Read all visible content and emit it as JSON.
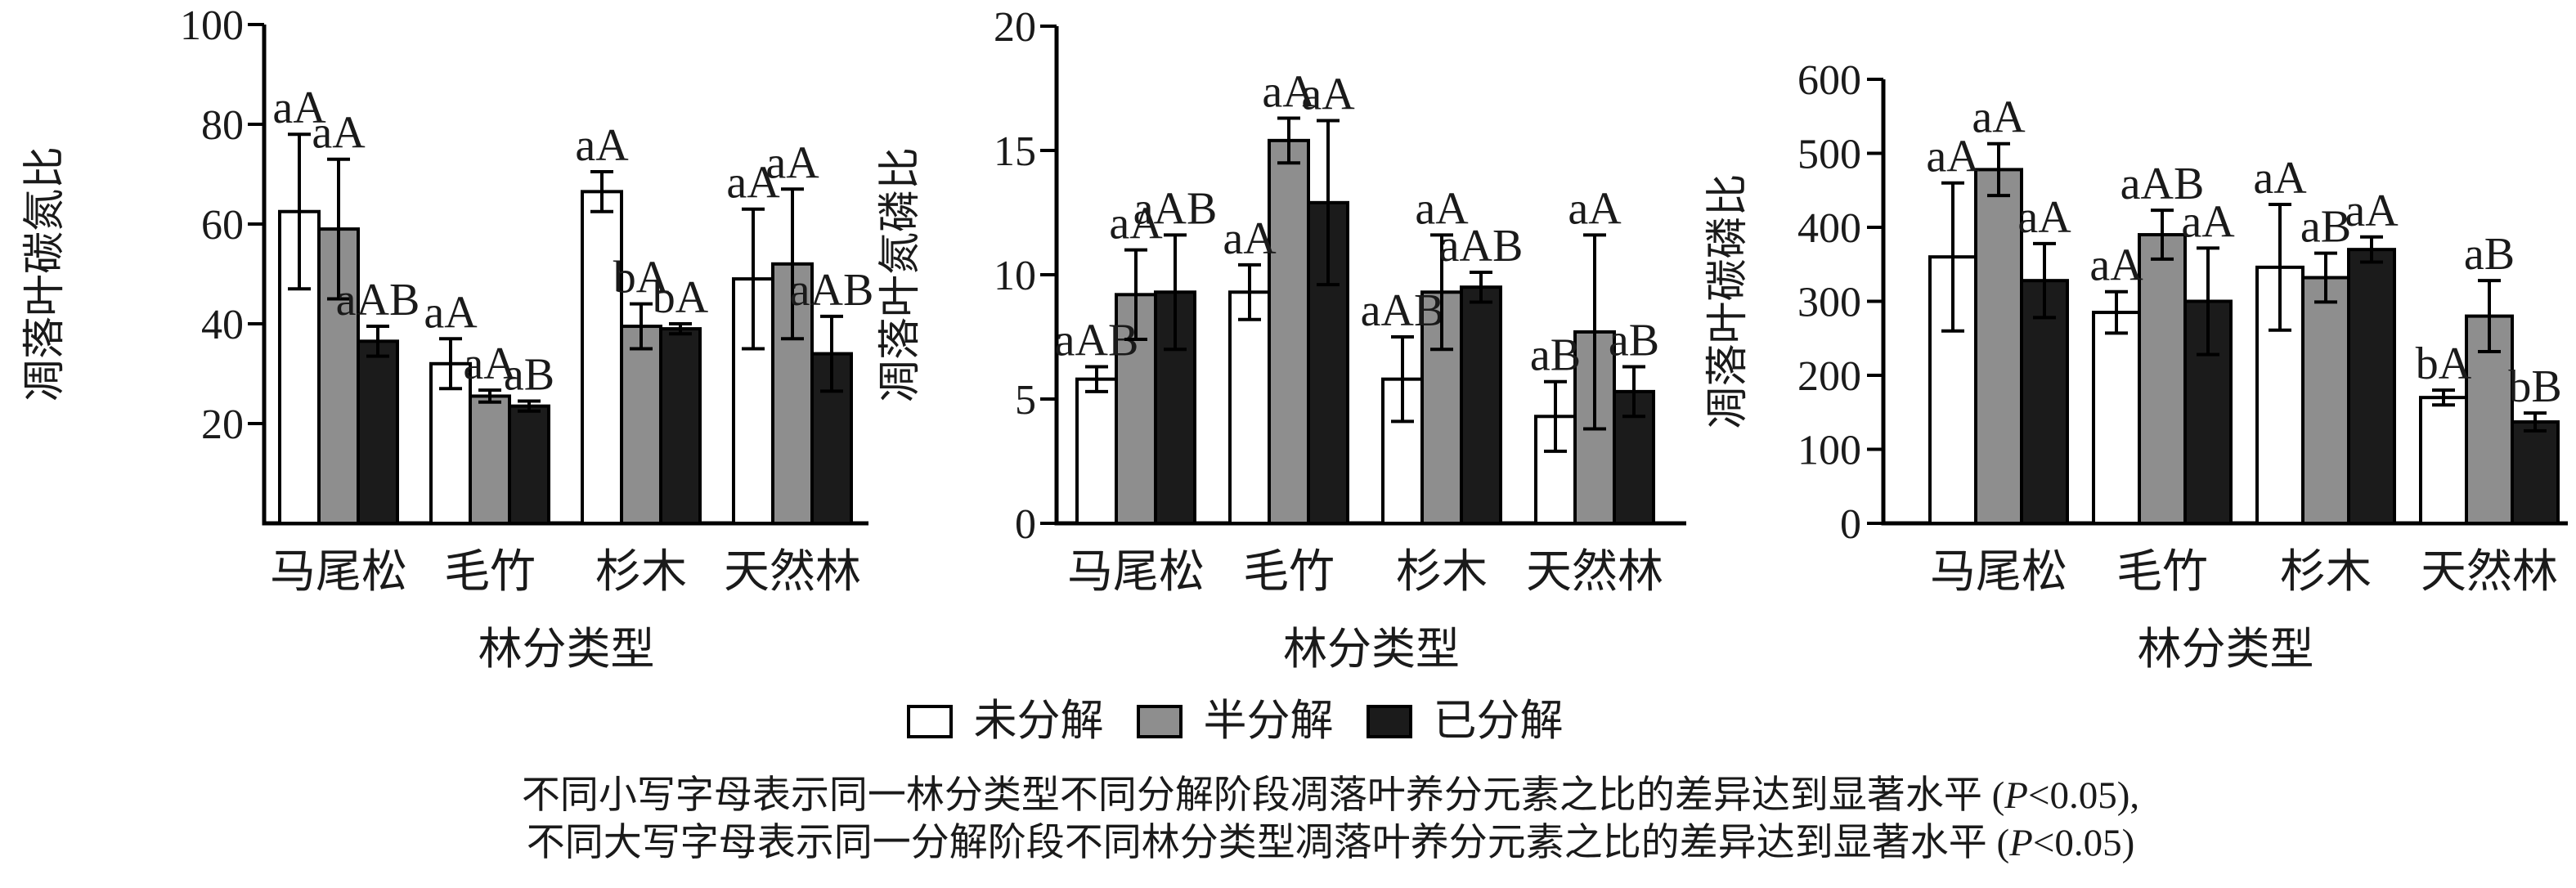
{
  "figure": {
    "baseline_color": "#000000",
    "bar_outline_color": "#000000"
  },
  "legend": {
    "items": [
      {
        "label": "未分解",
        "fill": "#ffffff"
      },
      {
        "label": "半分解",
        "fill": "#8e8e8e"
      },
      {
        "label": "已分解",
        "fill": "#1b1b1b"
      }
    ]
  },
  "caption": {
    "p": "P",
    "line1_pre": "不同小写字母表示同一林分类型不同分解阶段凋落叶养分元素之比的差异达到显著水平 (",
    "line1_post": "<0.05),",
    "line2_pre": "不同大写字母表示同一分解阶段不同林分类型凋落叶养分元素之比的差异达到显著水平 (",
    "line2_post": "<0.05)"
  },
  "chart_data": [
    {
      "type": "bar",
      "ylabel": "凋落叶碳氮比",
      "xlabel": "林分类型",
      "categories": [
        "马尾松",
        "毛竹",
        "杉木",
        "天然林"
      ],
      "yticks": [
        100,
        80,
        60,
        40,
        20
      ],
      "ylim": [
        0,
        100
      ],
      "grid": false,
      "series": [
        {
          "name": "未分解",
          "values": [
            62.5,
            32.0,
            66.5,
            49.0
          ],
          "errors": [
            15.5,
            5.0,
            4.0,
            14.0
          ],
          "letters": [
            "aA",
            "aA",
            "aA",
            "aA"
          ]
        },
        {
          "name": "半分解",
          "values": [
            59.0,
            25.5,
            39.5,
            52.0
          ],
          "errors": [
            14.0,
            1.2,
            4.5,
            15.0
          ],
          "letters": [
            "aA",
            "aA",
            "bA",
            "aA"
          ]
        },
        {
          "name": "已分解",
          "values": [
            36.5,
            23.5,
            39.0,
            34.0
          ],
          "errors": [
            3.0,
            1.0,
            1.0,
            7.5
          ],
          "letters": [
            "aAB",
            "aB",
            "bA",
            "aAB"
          ]
        }
      ]
    },
    {
      "type": "bar",
      "ylabel": "凋落叶氮磷比",
      "xlabel": "林分类型",
      "categories": [
        "马尾松",
        "毛竹",
        "杉木",
        "天然林"
      ],
      "yticks": [
        20,
        15,
        10,
        5,
        0
      ],
      "ylim": [
        0,
        20
      ],
      "grid": false,
      "series": [
        {
          "name": "未分解",
          "values": [
            5.8,
            9.3,
            5.8,
            4.3
          ],
          "errors": [
            0.5,
            1.1,
            1.7,
            1.4
          ],
          "letters": [
            "aAB",
            "aA",
            "aAB",
            "aB"
          ]
        },
        {
          "name": "半分解",
          "values": [
            9.2,
            15.4,
            9.3,
            7.7
          ],
          "errors": [
            1.8,
            0.9,
            2.3,
            3.9
          ],
          "letters": [
            "aA",
            "aA",
            "aA",
            "aA"
          ]
        },
        {
          "name": "已分解",
          "values": [
            9.3,
            12.9,
            9.5,
            5.3
          ],
          "errors": [
            2.3,
            3.3,
            0.6,
            1.0
          ],
          "letters": [
            "aAB",
            "aA",
            "aAB",
            "aB"
          ]
        }
      ]
    },
    {
      "type": "bar",
      "ylabel": "凋落叶碳磷比",
      "xlabel": "林分类型",
      "categories": [
        "马尾松",
        "毛竹",
        "杉木",
        "天然林"
      ],
      "yticks": [
        600,
        500,
        400,
        300,
        200,
        100,
        0
      ],
      "ylim": [
        0,
        600
      ],
      "grid": false,
      "series": [
        {
          "name": "未分解",
          "values": [
            360,
            285,
            346,
            170
          ],
          "errors": [
            100,
            28,
            85,
            10
          ],
          "letters": [
            "aA",
            "aA",
            "aA",
            "bA"
          ]
        },
        {
          "name": "半分解",
          "values": [
            478,
            390,
            332,
            280
          ],
          "errors": [
            35,
            33,
            33,
            48
          ],
          "letters": [
            "aA",
            "aAB",
            "aB",
            "aB"
          ]
        },
        {
          "name": "已分解",
          "values": [
            328,
            300,
            370,
            137
          ],
          "errors": [
            50,
            72,
            17,
            12
          ],
          "letters": [
            "aA",
            "aA",
            "aA",
            "bB"
          ]
        }
      ]
    }
  ]
}
